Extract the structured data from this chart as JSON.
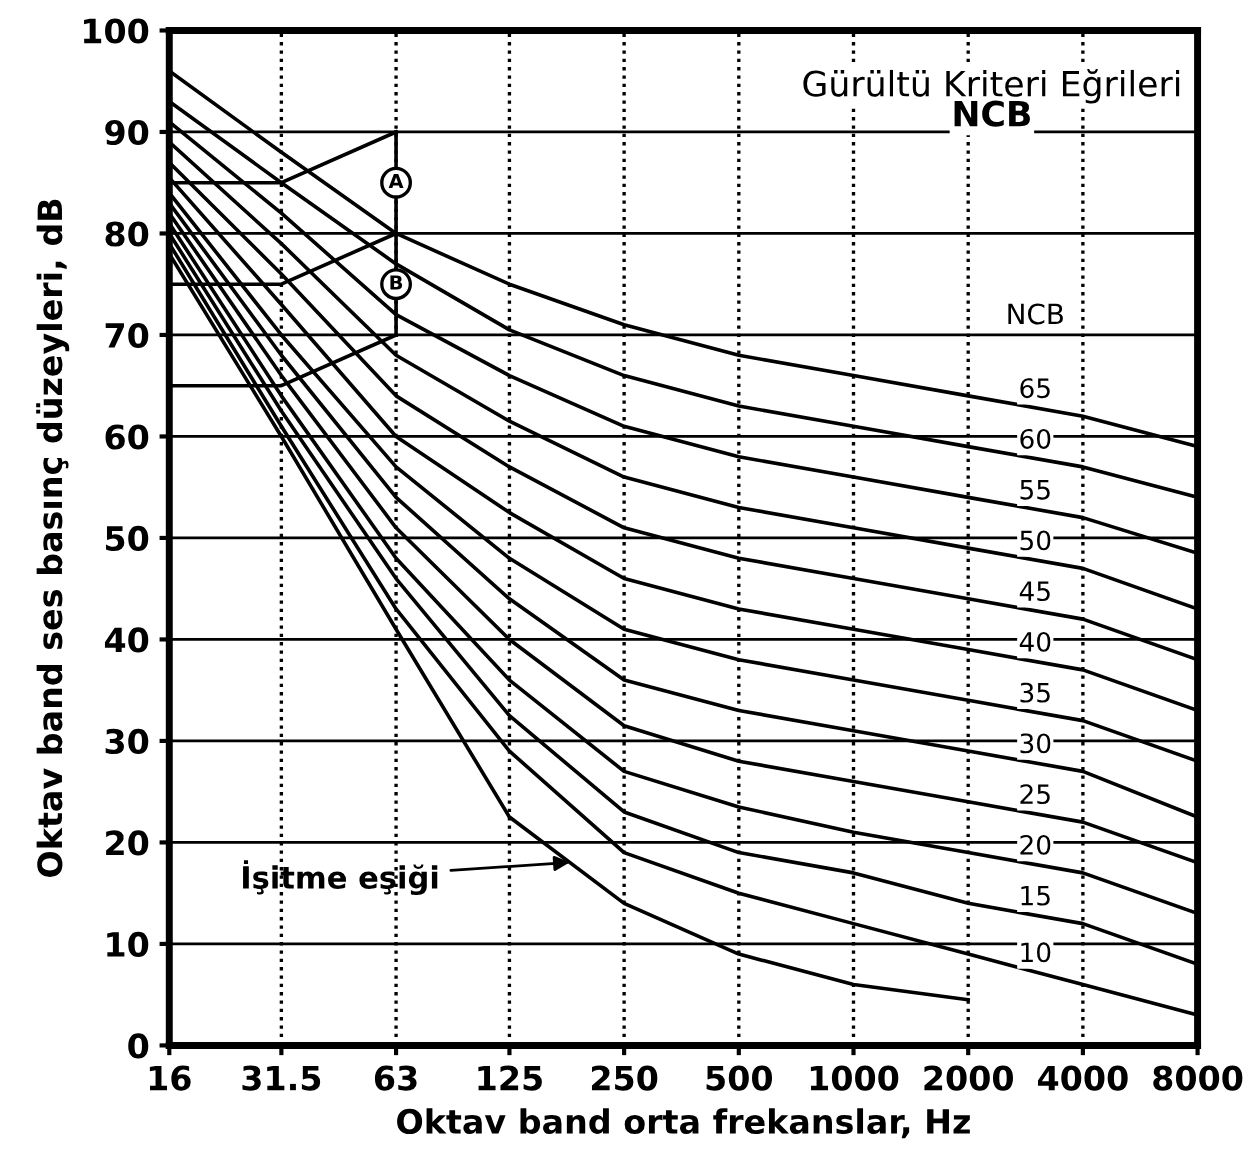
{
  "chart_data": {
    "type": "line",
    "title": "Gürültü Kriteri Eğrileri",
    "subtitle": "NCB",
    "xlabel": "Oktav band orta frekanslar, Hz",
    "ylabel": "Oktav band ses basınç düzeyleri, dB",
    "legend_title": "NCB",
    "log": "x",
    "xlim": [
      16,
      8000
    ],
    "xticks": [
      16,
      {
        "value": 31.5,
        "label": "31.5"
      },
      63,
      125,
      250,
      500,
      1000,
      2000,
      4000,
      8000
    ],
    "ylim": [
      0,
      100
    ],
    "yticks": [
      0,
      10,
      20,
      30,
      40,
      50,
      60,
      70,
      80,
      90,
      100
    ],
    "grid": true,
    "legend": false,
    "marker": "none",
    "line_style": "solid",
    "x": [
      16,
      31.5,
      63,
      125,
      250,
      500,
      1000,
      2000,
      4000,
      8000
    ],
    "series": [
      {
        "name": "65",
        "color": "#000000",
        "values": [
          96,
          88,
          80,
          75,
          71,
          68,
          66,
          64,
          62,
          59
        ]
      },
      {
        "name": "60",
        "color": "#000000",
        "values": [
          93,
          85,
          77,
          70.5,
          66,
          63,
          61,
          59,
          57,
          54
        ]
      },
      {
        "name": "55",
        "color": "#000000",
        "values": [
          91,
          82,
          72,
          66,
          61,
          58,
          56,
          54,
          52,
          48.5
        ]
      },
      {
        "name": "50",
        "color": "#000000",
        "values": [
          89,
          79,
          68,
          61.5,
          56,
          53,
          51,
          49,
          47,
          43
        ]
      },
      {
        "name": "45",
        "color": "#000000",
        "values": [
          87,
          76,
          64,
          57,
          51,
          48,
          46,
          44,
          42,
          38
        ]
      },
      {
        "name": "40",
        "color": "#000000",
        "values": [
          85.5,
          73,
          60,
          52.5,
          46,
          43,
          41,
          39,
          37,
          33
        ]
      },
      {
        "name": "35",
        "color": "#000000",
        "values": [
          84,
          70,
          57,
          48,
          41,
          38,
          36,
          34,
          32,
          28
        ]
      },
      {
        "name": "30",
        "color": "#000000",
        "values": [
          83,
          68,
          54,
          44,
          36,
          33,
          31,
          29,
          27,
          22.5
        ]
      },
      {
        "name": "25",
        "color": "#000000",
        "values": [
          82,
          66,
          51,
          40,
          31.5,
          28,
          26,
          24,
          22,
          18
        ]
      },
      {
        "name": "20",
        "color": "#000000",
        "values": [
          81,
          64,
          48,
          36,
          27,
          23.5,
          21,
          19,
          17,
          13
        ]
      },
      {
        "name": "15",
        "color": "#000000",
        "values": [
          80,
          62.5,
          46,
          32.5,
          23,
          19,
          17,
          14,
          12,
          8
        ]
      },
      {
        "name": "10",
        "color": "#000000",
        "values": [
          79,
          61,
          43,
          29,
          19,
          15,
          12,
          9,
          6,
          3
        ]
      },
      {
        "name": "İşitme eşiği",
        "color": "#000000",
        "x": [
          16,
          31.5,
          63,
          125,
          250,
          500,
          1000,
          2000
        ],
        "values": [
          78,
          60,
          41,
          22.5,
          14,
          9,
          6,
          4.5
        ]
      },
      {
        "color": "#000000",
        "x": [
          16,
          31.5,
          63
        ],
        "values": [
          85,
          85,
          90
        ]
      },
      {
        "color": "#000000",
        "x": [
          16,
          31.5,
          63
        ],
        "values": [
          75,
          75,
          80
        ]
      },
      {
        "color": "#000000",
        "x": [
          16,
          31.5,
          63
        ],
        "values": [
          65,
          65,
          70
        ]
      },
      {
        "color": "#000000",
        "x": [
          63,
          63
        ],
        "values": [
          70,
          90
        ]
      }
    ],
    "annotations": [
      {
        "text": "A",
        "x": 63,
        "y": 85
      },
      {
        "text": "B",
        "x": 63,
        "y": 75
      }
    ]
  }
}
